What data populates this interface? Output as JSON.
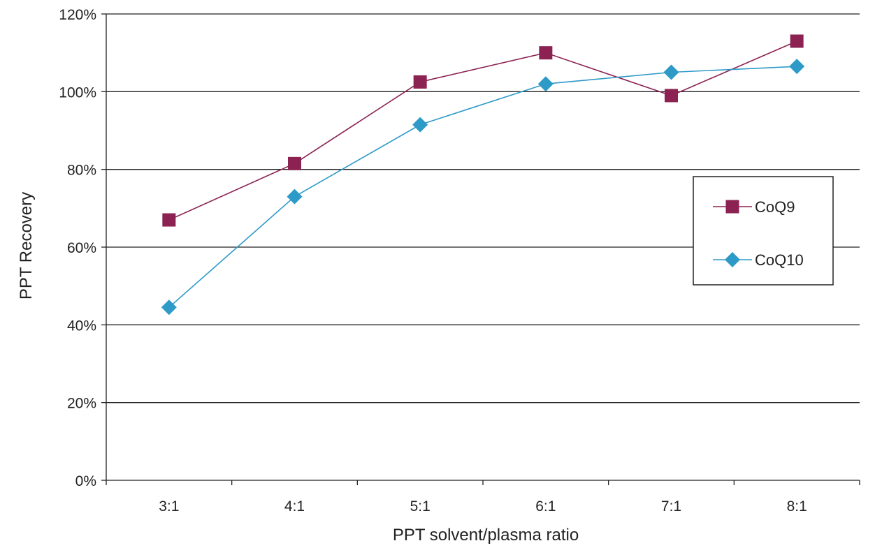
{
  "chart_data": {
    "type": "line",
    "title": "",
    "xlabel": "PPT solvent/plasma ratio",
    "ylabel": "PPT Recovery",
    "categories": [
      "3:1",
      "4:1",
      "5:1",
      "6:1",
      "7:1",
      "8:1"
    ],
    "ylim": [
      0,
      120
    ],
    "yticks": [
      0,
      20,
      40,
      60,
      80,
      100,
      120
    ],
    "ytick_suffix": "%",
    "grid": "horizontal",
    "legend_position": "right",
    "series": [
      {
        "name": "CoQ9",
        "marker": "square",
        "color": "#8b2252",
        "values": [
          67,
          81.5,
          102.5,
          110,
          99,
          113
        ]
      },
      {
        "name": "CoQ10",
        "marker": "diamond",
        "color": "#2e9ac8",
        "values": [
          44.5,
          73,
          91.5,
          102,
          105,
          106.5
        ]
      }
    ]
  }
}
